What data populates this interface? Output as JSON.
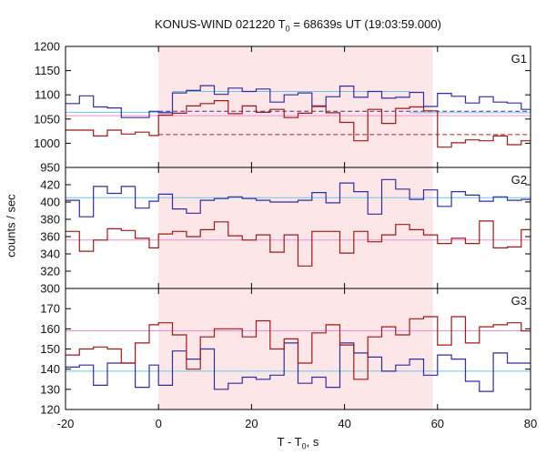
{
  "figure": {
    "title_prefix": "KONUS-WIND 021220 T",
    "title_sub": "0",
    "title_suffix": " = 68639s UT (19:03:59.000)",
    "ylabel": "counts / sec",
    "xlabel_prefix": "T - T",
    "xlabel_sub": "0",
    "xlabel_suffix": ", s"
  },
  "colors": {
    "blue": "#2e2ea0",
    "red": "#a01818",
    "light_blue": "#6ec3e8",
    "pink": "#ee90d0",
    "shade": "#fde6e8",
    "dash_blue": "#4a2aa0",
    "dash_red": "#b02020"
  },
  "chart_data": {
    "type": "line",
    "x_range": [
      -20,
      80
    ],
    "x_ticks": [
      -20,
      0,
      20,
      40,
      60,
      80
    ],
    "highlight_interval": [
      0,
      59
    ],
    "panels": [
      {
        "label": "G1",
        "ylim": [
          950,
          1200
        ],
        "y_ticks": [
          950,
          1000,
          1050,
          1100,
          1150,
          1200
        ],
        "x_edges": [
          -20,
          -17,
          -14,
          -11,
          -8,
          -5,
          -2,
          0,
          3,
          6,
          9,
          12,
          15,
          18,
          21,
          24,
          27,
          30,
          33,
          36,
          39,
          42,
          45,
          48,
          51,
          54,
          57,
          60,
          63,
          66,
          69,
          72,
          75,
          78,
          80
        ],
        "series": [
          {
            "color": "blue",
            "values": [
              1082,
              1098,
              1075,
              1073,
              1053,
              1053,
              1066,
              1063,
              1104,
              1109,
              1119,
              1101,
              1114,
              1107,
              1112,
              1085,
              1100,
              1104,
              1077,
              1096,
              1118,
              1095,
              1107,
              1093,
              1095,
              1105,
              1076,
              1103,
              1097,
              1083,
              1096,
              1085,
              1083,
              1070
            ]
          },
          {
            "color": "red",
            "values": [
              1027,
              1027,
              1015,
              1027,
              1019,
              1023,
              1016,
              1058,
              1062,
              1077,
              1082,
              1088,
              1061,
              1077,
              1064,
              1070,
              1053,
              1062,
              1076,
              1063,
              1043,
              1005,
              1070,
              1041,
              1072,
              1075,
              1067,
              992,
              1001,
              1007,
              1005,
              1015,
              997,
              1005
            ]
          }
        ],
        "levels": [
          {
            "color": "light_blue",
            "style": "solid",
            "segments": [
              [
                -20,
                0,
                1064
              ],
              [
                0,
                3,
                1064
              ],
              [
                3,
                54,
                1107
              ],
              [
                54,
                80,
                1063
              ]
            ]
          },
          {
            "color": "pink",
            "style": "solid",
            "segments": [
              [
                -20,
                80,
                1057
              ]
            ]
          },
          {
            "color": "dash_blue",
            "style": "dashed",
            "segments": [
              [
                0,
                80,
                1066
              ]
            ]
          },
          {
            "color": "dash_red",
            "style": "dashed",
            "segments": [
              [
                0,
                80,
                1018
              ]
            ]
          }
        ]
      },
      {
        "label": "G2",
        "ylim": [
          300,
          440
        ],
        "y_ticks": [
          300,
          320,
          340,
          360,
          380,
          400,
          420
        ],
        "x_edges": [
          -20,
          -17,
          -14,
          -11,
          -8,
          -5,
          -2,
          0,
          3,
          6,
          9,
          12,
          15,
          18,
          21,
          24,
          27,
          30,
          33,
          36,
          39,
          42,
          45,
          48,
          51,
          54,
          57,
          60,
          63,
          66,
          69,
          72,
          75,
          78,
          80
        ],
        "series": [
          {
            "color": "blue",
            "values": [
              402,
              383,
              418,
              410,
              418,
              393,
              401,
              409,
              392,
              387,
              402,
              404,
              406,
              404,
              402,
              400,
              400,
              402,
              411,
              399,
              422,
              412,
              386,
              426,
              415,
              403,
              414,
              395,
              412,
              408,
              401,
              406,
              402,
              403
            ]
          },
          {
            "color": "red",
            "values": [
              366,
              343,
              356,
              369,
              367,
              358,
              347,
              363,
              366,
              360,
              368,
              377,
              361,
              356,
              362,
              342,
              362,
              326,
              366,
              366,
              341,
              366,
              354,
              362,
              374,
              368,
              362,
              352,
              358,
              352,
              378,
              347,
              348,
              368
            ]
          }
        ],
        "levels": [
          {
            "color": "light_blue",
            "style": "solid",
            "segments": [
              [
                -20,
                80,
                405
              ]
            ]
          },
          {
            "color": "pink",
            "style": "solid",
            "segments": [
              [
                -20,
                80,
                356
              ]
            ]
          }
        ]
      },
      {
        "label": "G3",
        "ylim": [
          120,
          180
        ],
        "y_ticks": [
          120,
          130,
          140,
          150,
          160,
          170
        ],
        "x_edges": [
          -20,
          -17,
          -14,
          -11,
          -8,
          -5,
          -2,
          0,
          3,
          6,
          9,
          12,
          15,
          18,
          21,
          24,
          27,
          30,
          33,
          36,
          39,
          42,
          45,
          48,
          51,
          54,
          57,
          60,
          63,
          66,
          69,
          72,
          75,
          78,
          80
        ],
        "series": [
          {
            "color": "blue",
            "values": [
              141,
              142,
              132,
              143,
              143,
              131,
              142,
              132,
              149,
              145,
              150,
              130,
              133,
              136,
              135,
              137,
              153,
              133,
              136,
              131,
              153,
              148,
              146,
              139,
              142,
              145,
              137,
              147,
              145,
              134,
              129,
              148,
              143,
              143
            ]
          },
          {
            "color": "red",
            "values": [
              147,
              150,
              151,
              150,
              143,
              153,
              162,
              163,
              157,
              140,
              156,
              160,
              160,
              156,
              164,
              150,
              155,
              143,
              158,
              162,
              152,
              135,
              156,
              161,
              157,
              165,
              166,
              152,
              166,
              153,
              161,
              162,
              163,
              159
            ]
          }
        ],
        "levels": [
          {
            "color": "light_blue",
            "style": "solid",
            "segments": [
              [
                -20,
                80,
                139
              ]
            ]
          },
          {
            "color": "pink",
            "style": "solid",
            "segments": [
              [
                -20,
                80,
                159
              ]
            ]
          }
        ]
      }
    ]
  }
}
